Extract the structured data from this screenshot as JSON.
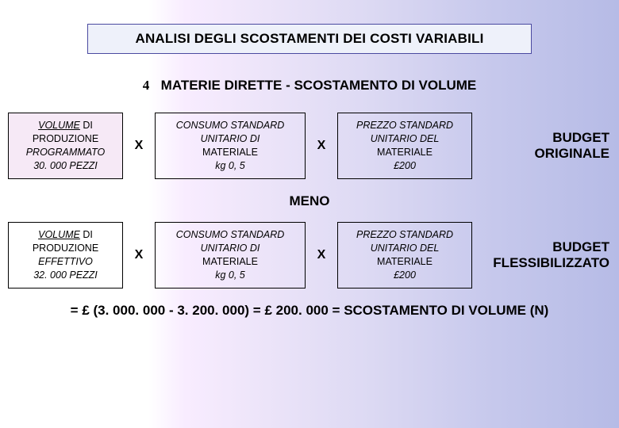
{
  "title": "ANALISI DEGLI SCOSTAMENTI DEI COSTI VARIABILI",
  "bullet_glyph": "4",
  "subtitle": "MATERIE DIRETTE - SCOSTAMENTO DI VOLUME",
  "row1": {
    "vol_l1": "VOLUME",
    "vol_l1b": " DI",
    "vol_l2": "PRODUZIONE",
    "vol_l3": "PROGRAMMATO",
    "vol_l4": "30. 000 PEZZI",
    "cons_l1": "CONSUMO STANDARD",
    "cons_l2": "UNITARIO DI",
    "cons_l3": "MATERIALE",
    "cons_l4": "kg 0, 5",
    "price_l1": "PREZZO STANDARD",
    "price_l2": "UNITARIO DEL",
    "price_l3": "MATERIALE",
    "price_l4_pre": "£",
    "price_l4_num": "200",
    "budget_l1": "BUDGET",
    "budget_l2": "ORIGINALE"
  },
  "meno": "MENO",
  "row2": {
    "vol_l1": "VOLUME",
    "vol_l1b": " DI",
    "vol_l2": "PRODUZIONE",
    "vol_l3": "EFFETTIVO",
    "vol_l4": "32. 000 PEZZI",
    "cons_l1": "CONSUMO STANDARD",
    "cons_l2": "UNITARIO DI",
    "cons_l3": "MATERIALE",
    "cons_l4": "kg 0, 5",
    "price_l1": "PREZZO STANDARD",
    "price_l2": "UNITARIO DEL",
    "price_l3": "MATERIALE",
    "price_l4_pre": "£",
    "price_l4_num": "200",
    "budget_l1": "BUDGET",
    "budget_l2": "FLESSIBILIZZATO"
  },
  "op_x": "X",
  "result": {
    "eq": "= ",
    "lparen": "£ (",
    "a": "3. 000. 000 - 3. 200. 000) = ",
    "b_pre": "£ ",
    "b": "200. 000 = SCOSTAMENTO DI VOLUME (N)"
  },
  "colors": {
    "title_border": "#4a4aa0",
    "title_bg": "#eef1fa",
    "cell_bg_pink": "#f6e9f6"
  }
}
